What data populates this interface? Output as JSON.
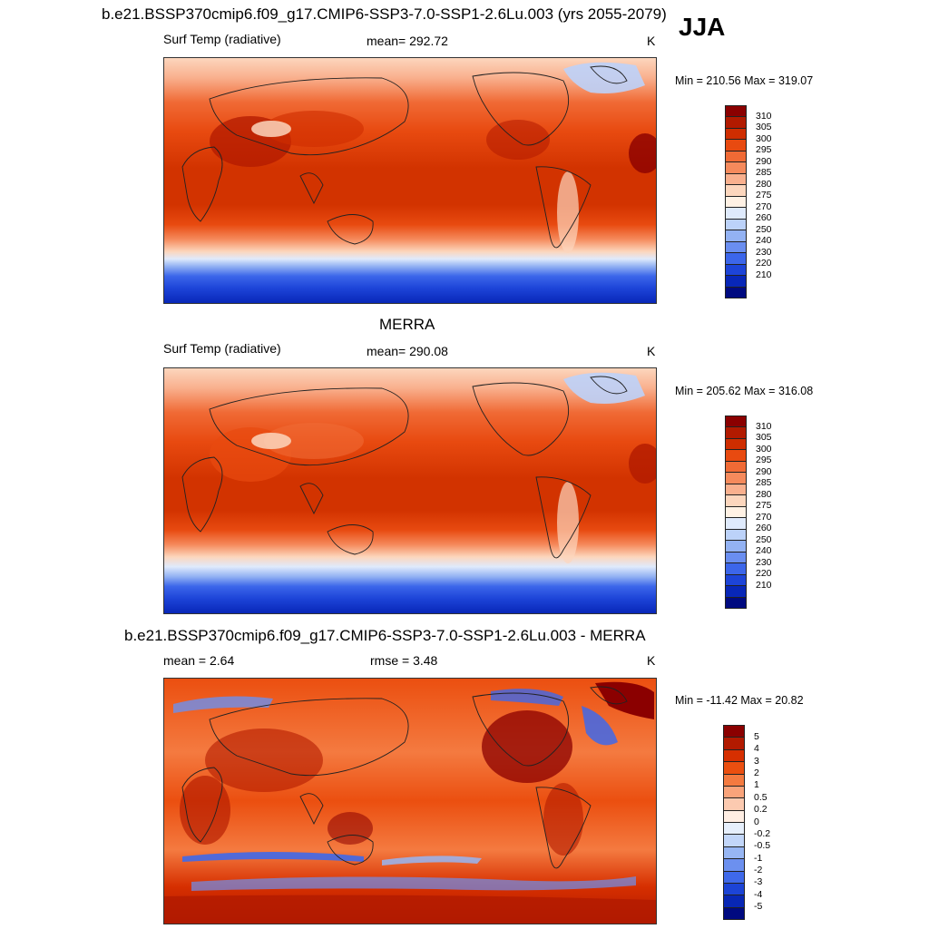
{
  "season": "JJA",
  "panels": [
    {
      "title": "b.e21.BSSP370cmip6.f09_g17.CMIP6-SSP3-7.0-SSP1-2.6Lu.003 (yrs 2055-2079)",
      "left_label": "Surf Temp (radiative)",
      "center_label": "mean= 292.72",
      "units": "K",
      "minmax": "Min = 210.56 Max = 319.07",
      "colorbar": {
        "labels": [
          "310",
          "305",
          "300",
          "295",
          "290",
          "285",
          "280",
          "275",
          "270",
          "260",
          "250",
          "240",
          "230",
          "220",
          "210"
        ],
        "colors": [
          "#8b0000",
          "#b21a00",
          "#cf2d00",
          "#e84a10",
          "#f06a35",
          "#f58a5c",
          "#f9b08e",
          "#fcd6bd",
          "#fff1e4",
          "#dfeafc",
          "#bcd2f9",
          "#93b2f3",
          "#6a8ef0",
          "#3c66ea",
          "#1d44d8",
          "#0827b8",
          "#000a80"
        ]
      }
    },
    {
      "title": "MERRA",
      "left_label": "Surf Temp (radiative)",
      "center_label": "mean= 290.08",
      "units": "K",
      "minmax": "Min = 205.62 Max = 316.08",
      "colorbar": {
        "labels": [
          "310",
          "305",
          "300",
          "295",
          "290",
          "285",
          "280",
          "275",
          "270",
          "260",
          "250",
          "240",
          "230",
          "220",
          "210"
        ],
        "colors": [
          "#8b0000",
          "#b21a00",
          "#cf2d00",
          "#e84a10",
          "#f06a35",
          "#f58a5c",
          "#f9b08e",
          "#fcd6bd",
          "#fff1e4",
          "#dfeafc",
          "#bcd2f9",
          "#93b2f3",
          "#6a8ef0",
          "#3c66ea",
          "#1d44d8",
          "#0827b8",
          "#000a80"
        ]
      }
    },
    {
      "title": "b.e21.BSSP370cmip6.f09_g17.CMIP6-SSP3-7.0-SSP1-2.6Lu.003 - MERRA",
      "left_label": "mean =   2.64",
      "center_label": "rmse =   3.48",
      "units": "K",
      "minmax": "Min = -11.42 Max =  20.82",
      "colorbar": {
        "labels": [
          "5",
          "4",
          "3",
          "2",
          "1",
          "0.5",
          "0.2",
          "0",
          "-0.2",
          "-0.5",
          "-1",
          "-2",
          "-3",
          "-4",
          "-5"
        ],
        "colors": [
          "#8b0000",
          "#b21a00",
          "#d62f00",
          "#eb4f10",
          "#f47a40",
          "#f9a37a",
          "#fccab0",
          "#ffeee3",
          "#e6effc",
          "#c2d6f9",
          "#97b6f3",
          "#6c90ef",
          "#3f69ea",
          "#1c44d6",
          "#0827b5",
          "#000a80"
        ]
      }
    }
  ]
}
